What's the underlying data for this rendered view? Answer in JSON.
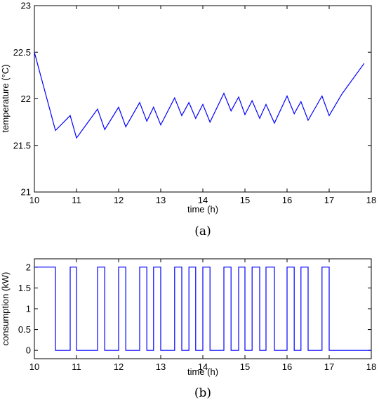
{
  "colors": {
    "series": "#0000ff",
    "axis": "#000000",
    "background": "#ffffff"
  },
  "chart_data": [
    {
      "type": "line",
      "caption": "(a)",
      "xlabel": "time (h)",
      "ylabel": "temperature (°C)",
      "xlim": [
        10,
        18
      ],
      "ylim": [
        21,
        23
      ],
      "xticks": [
        10,
        11,
        12,
        13,
        14,
        15,
        16,
        17,
        18
      ],
      "yticks": [
        "21",
        "21.5",
        "22",
        "22.5",
        "23"
      ],
      "ytick_values": [
        21,
        21.5,
        22,
        22.5,
        23
      ],
      "grid": false,
      "series": [
        {
          "x": [
            10.0,
            10.5,
            10.85,
            11.0,
            11.5,
            11.67,
            12.0,
            12.17,
            12.5,
            12.67,
            12.83,
            13.0,
            13.33,
            13.5,
            13.67,
            13.83,
            14.0,
            14.17,
            14.5,
            14.67,
            14.85,
            15.0,
            15.17,
            15.35,
            15.5,
            15.7,
            16.0,
            16.17,
            16.33,
            16.5,
            16.83,
            17.0,
            17.3,
            17.83
          ],
          "y": [
            22.5,
            21.66,
            21.82,
            21.58,
            21.89,
            21.67,
            21.91,
            21.7,
            21.96,
            21.76,
            21.91,
            21.72,
            22.01,
            21.82,
            21.96,
            21.79,
            21.94,
            21.75,
            22.06,
            21.87,
            22.02,
            21.83,
            21.98,
            21.79,
            21.94,
            21.74,
            22.03,
            21.84,
            21.97,
            21.77,
            22.03,
            21.82,
            22.05,
            22.38
          ]
        }
      ]
    },
    {
      "type": "line",
      "caption": "(b)",
      "xlabel": "time (h)",
      "ylabel": "consumption (kW)",
      "xlim": [
        10,
        18
      ],
      "ylim": [
        -0.2,
        2.2
      ],
      "xticks": [
        10,
        11,
        12,
        13,
        14,
        15,
        16,
        17,
        18
      ],
      "yticks": [
        "0",
        "0.5",
        "1",
        "1.5",
        "2"
      ],
      "ytick_values": [
        0,
        0.5,
        1,
        1.5,
        2
      ],
      "grid": false,
      "step": true,
      "series": [
        {
          "on_intervals": [
            [
              10.0,
              10.5
            ],
            [
              10.85,
              11.0
            ],
            [
              11.5,
              11.67
            ],
            [
              12.0,
              12.17
            ],
            [
              12.5,
              12.67
            ],
            [
              12.83,
              13.0
            ],
            [
              13.33,
              13.5
            ],
            [
              13.67,
              13.83
            ],
            [
              14.0,
              14.17
            ],
            [
              14.5,
              14.67
            ],
            [
              14.85,
              15.0
            ],
            [
              15.17,
              15.35
            ],
            [
              15.5,
              15.7
            ],
            [
              16.0,
              16.17
            ],
            [
              16.33,
              16.5
            ],
            [
              16.83,
              17.0
            ]
          ],
          "on_value": 2,
          "off_value": 0
        }
      ]
    }
  ]
}
